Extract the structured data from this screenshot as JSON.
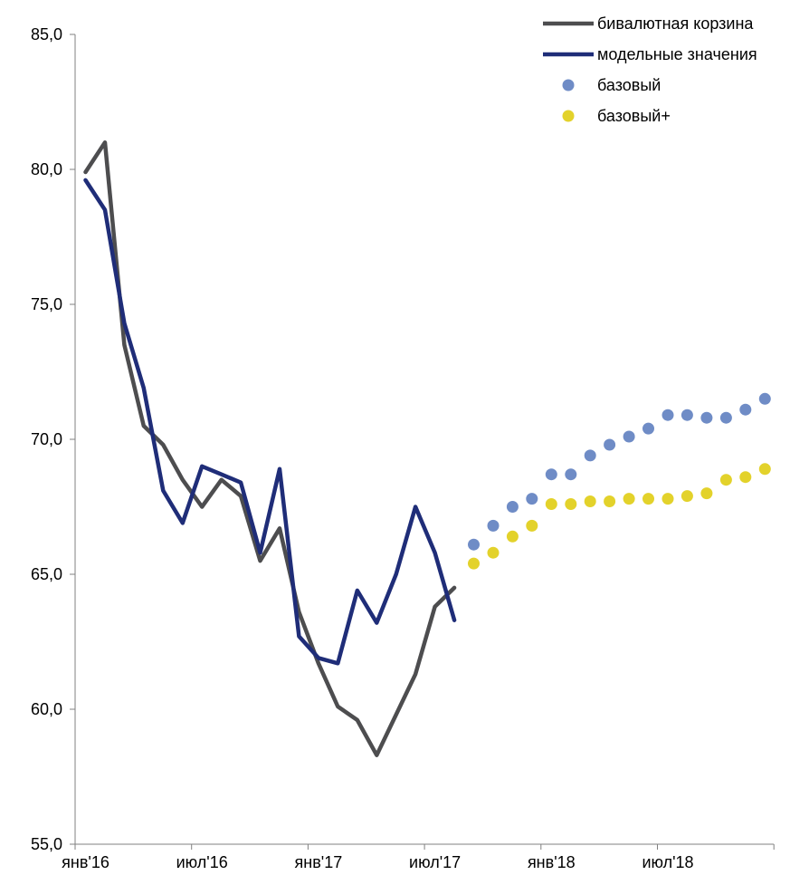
{
  "chart_data": {
    "type": "line",
    "title": "",
    "xlabel": "",
    "ylabel": "",
    "ylim": [
      55,
      85
    ],
    "y_ticks": [
      55,
      60,
      65,
      70,
      75,
      80,
      85
    ],
    "y_tick_labels": [
      "55,0",
      "60,0",
      "65,0",
      "70,0",
      "75,0",
      "80,0",
      "85,0"
    ],
    "x_periods": [
      "2016-01",
      "2016-02",
      "2016-03",
      "2016-04",
      "2016-05",
      "2016-06",
      "2016-07",
      "2016-08",
      "2016-09",
      "2016-10",
      "2016-11",
      "2016-12",
      "2017-01",
      "2017-02",
      "2017-03",
      "2017-04",
      "2017-05",
      "2017-06",
      "2017-07",
      "2017-08",
      "2017-09",
      "2017-10",
      "2017-11",
      "2017-12",
      "2018-01",
      "2018-02",
      "2018-03",
      "2018-04",
      "2018-05",
      "2018-06",
      "2018-07",
      "2018-08",
      "2018-09",
      "2018-10",
      "2018-11",
      "2018-12"
    ],
    "x_tick_labels": [
      {
        "period": "2016-01",
        "label": "янв'16"
      },
      {
        "period": "2016-07",
        "label": "июл'16"
      },
      {
        "period": "2017-01",
        "label": "янв'17"
      },
      {
        "period": "2017-07",
        "label": "июл'17"
      },
      {
        "period": "2018-01",
        "label": "янв'18"
      },
      {
        "period": "2018-07",
        "label": "июл'18"
      }
    ],
    "legend_position": "top-right",
    "grid": false,
    "series": [
      {
        "name": "бивалютная корзина",
        "kind": "line",
        "color": "#4d4d4f",
        "start": "2016-01",
        "values": [
          79.9,
          81.0,
          73.5,
          70.5,
          69.8,
          68.5,
          67.5,
          68.5,
          67.9,
          65.5,
          66.7,
          63.6,
          61.7,
          60.1,
          59.6,
          58.3,
          59.8,
          61.3,
          63.8,
          64.5
        ]
      },
      {
        "name": "модельные значения",
        "kind": "line",
        "color": "#1f2d78",
        "start": "2016-01",
        "values": [
          79.6,
          78.5,
          74.3,
          71.9,
          68.1,
          66.9,
          69.0,
          68.7,
          68.4,
          65.8,
          68.9,
          62.7,
          61.9,
          61.7,
          64.4,
          63.2,
          65.0,
          67.5,
          65.8,
          63.3
        ]
      },
      {
        "name": "базовый",
        "kind": "scatter",
        "color": "#6f8cc6",
        "start": "2017-09",
        "values": [
          66.1,
          66.8,
          67.5,
          67.8,
          68.7,
          68.7,
          69.4,
          69.8,
          70.1,
          70.4,
          70.9,
          70.9,
          70.8,
          70.8,
          71.1,
          71.5
        ]
      },
      {
        "name": "базовый+",
        "kind": "scatter",
        "color": "#e3d22b",
        "start": "2017-09",
        "values": [
          65.4,
          65.8,
          66.4,
          66.8,
          67.6,
          67.6,
          67.7,
          67.7,
          67.8,
          67.8,
          67.8,
          67.9,
          68.0,
          68.5,
          68.6,
          68.9
        ]
      }
    ]
  }
}
